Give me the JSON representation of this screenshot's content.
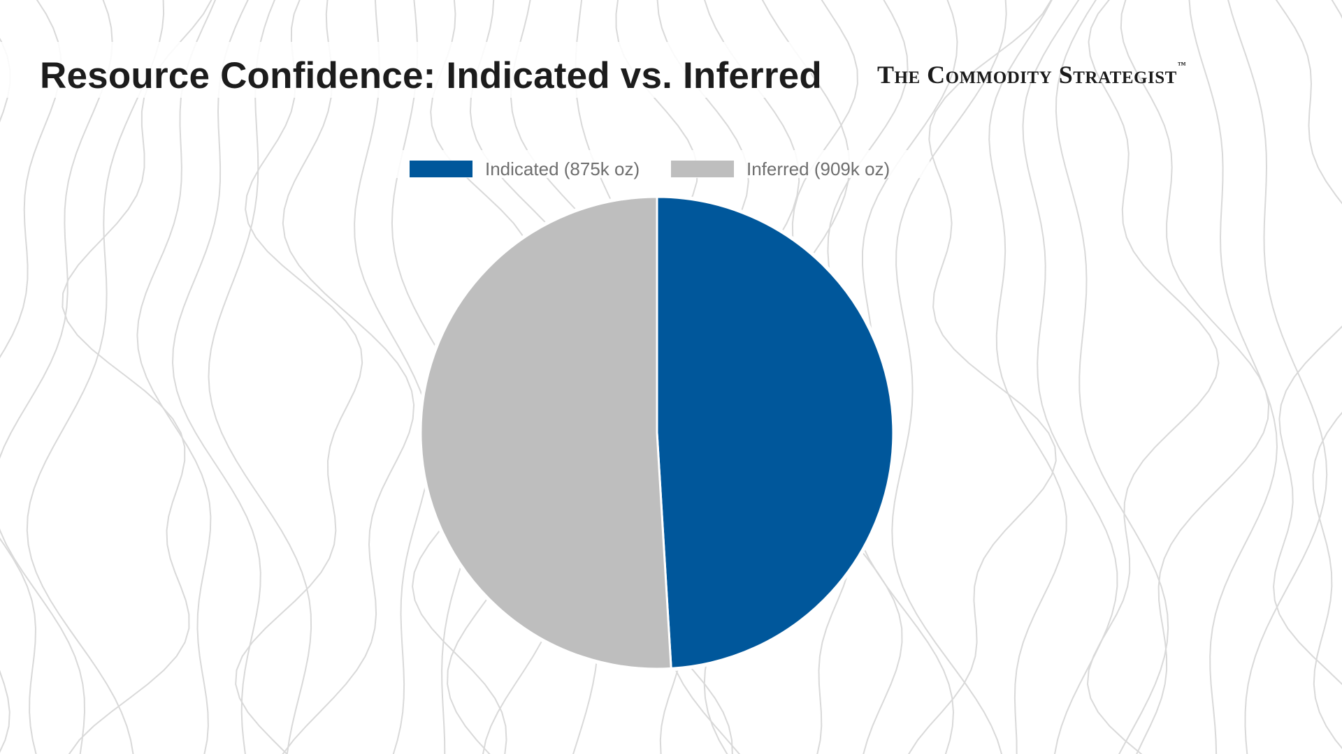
{
  "title": "Resource Confidence: Indicated vs. Inferred",
  "brand": {
    "name": "The Commodity Strategist",
    "trademark": "™"
  },
  "chart_data": {
    "type": "pie",
    "title": "Resource Confidence: Indicated vs. Inferred",
    "legend_position": "top",
    "series": [
      {
        "name": "Indicated (875k oz)",
        "value": 875,
        "color": "#00579B"
      },
      {
        "name": "Inferred (909k oz)",
        "value": 909,
        "color": "#BEBEBE"
      }
    ]
  }
}
